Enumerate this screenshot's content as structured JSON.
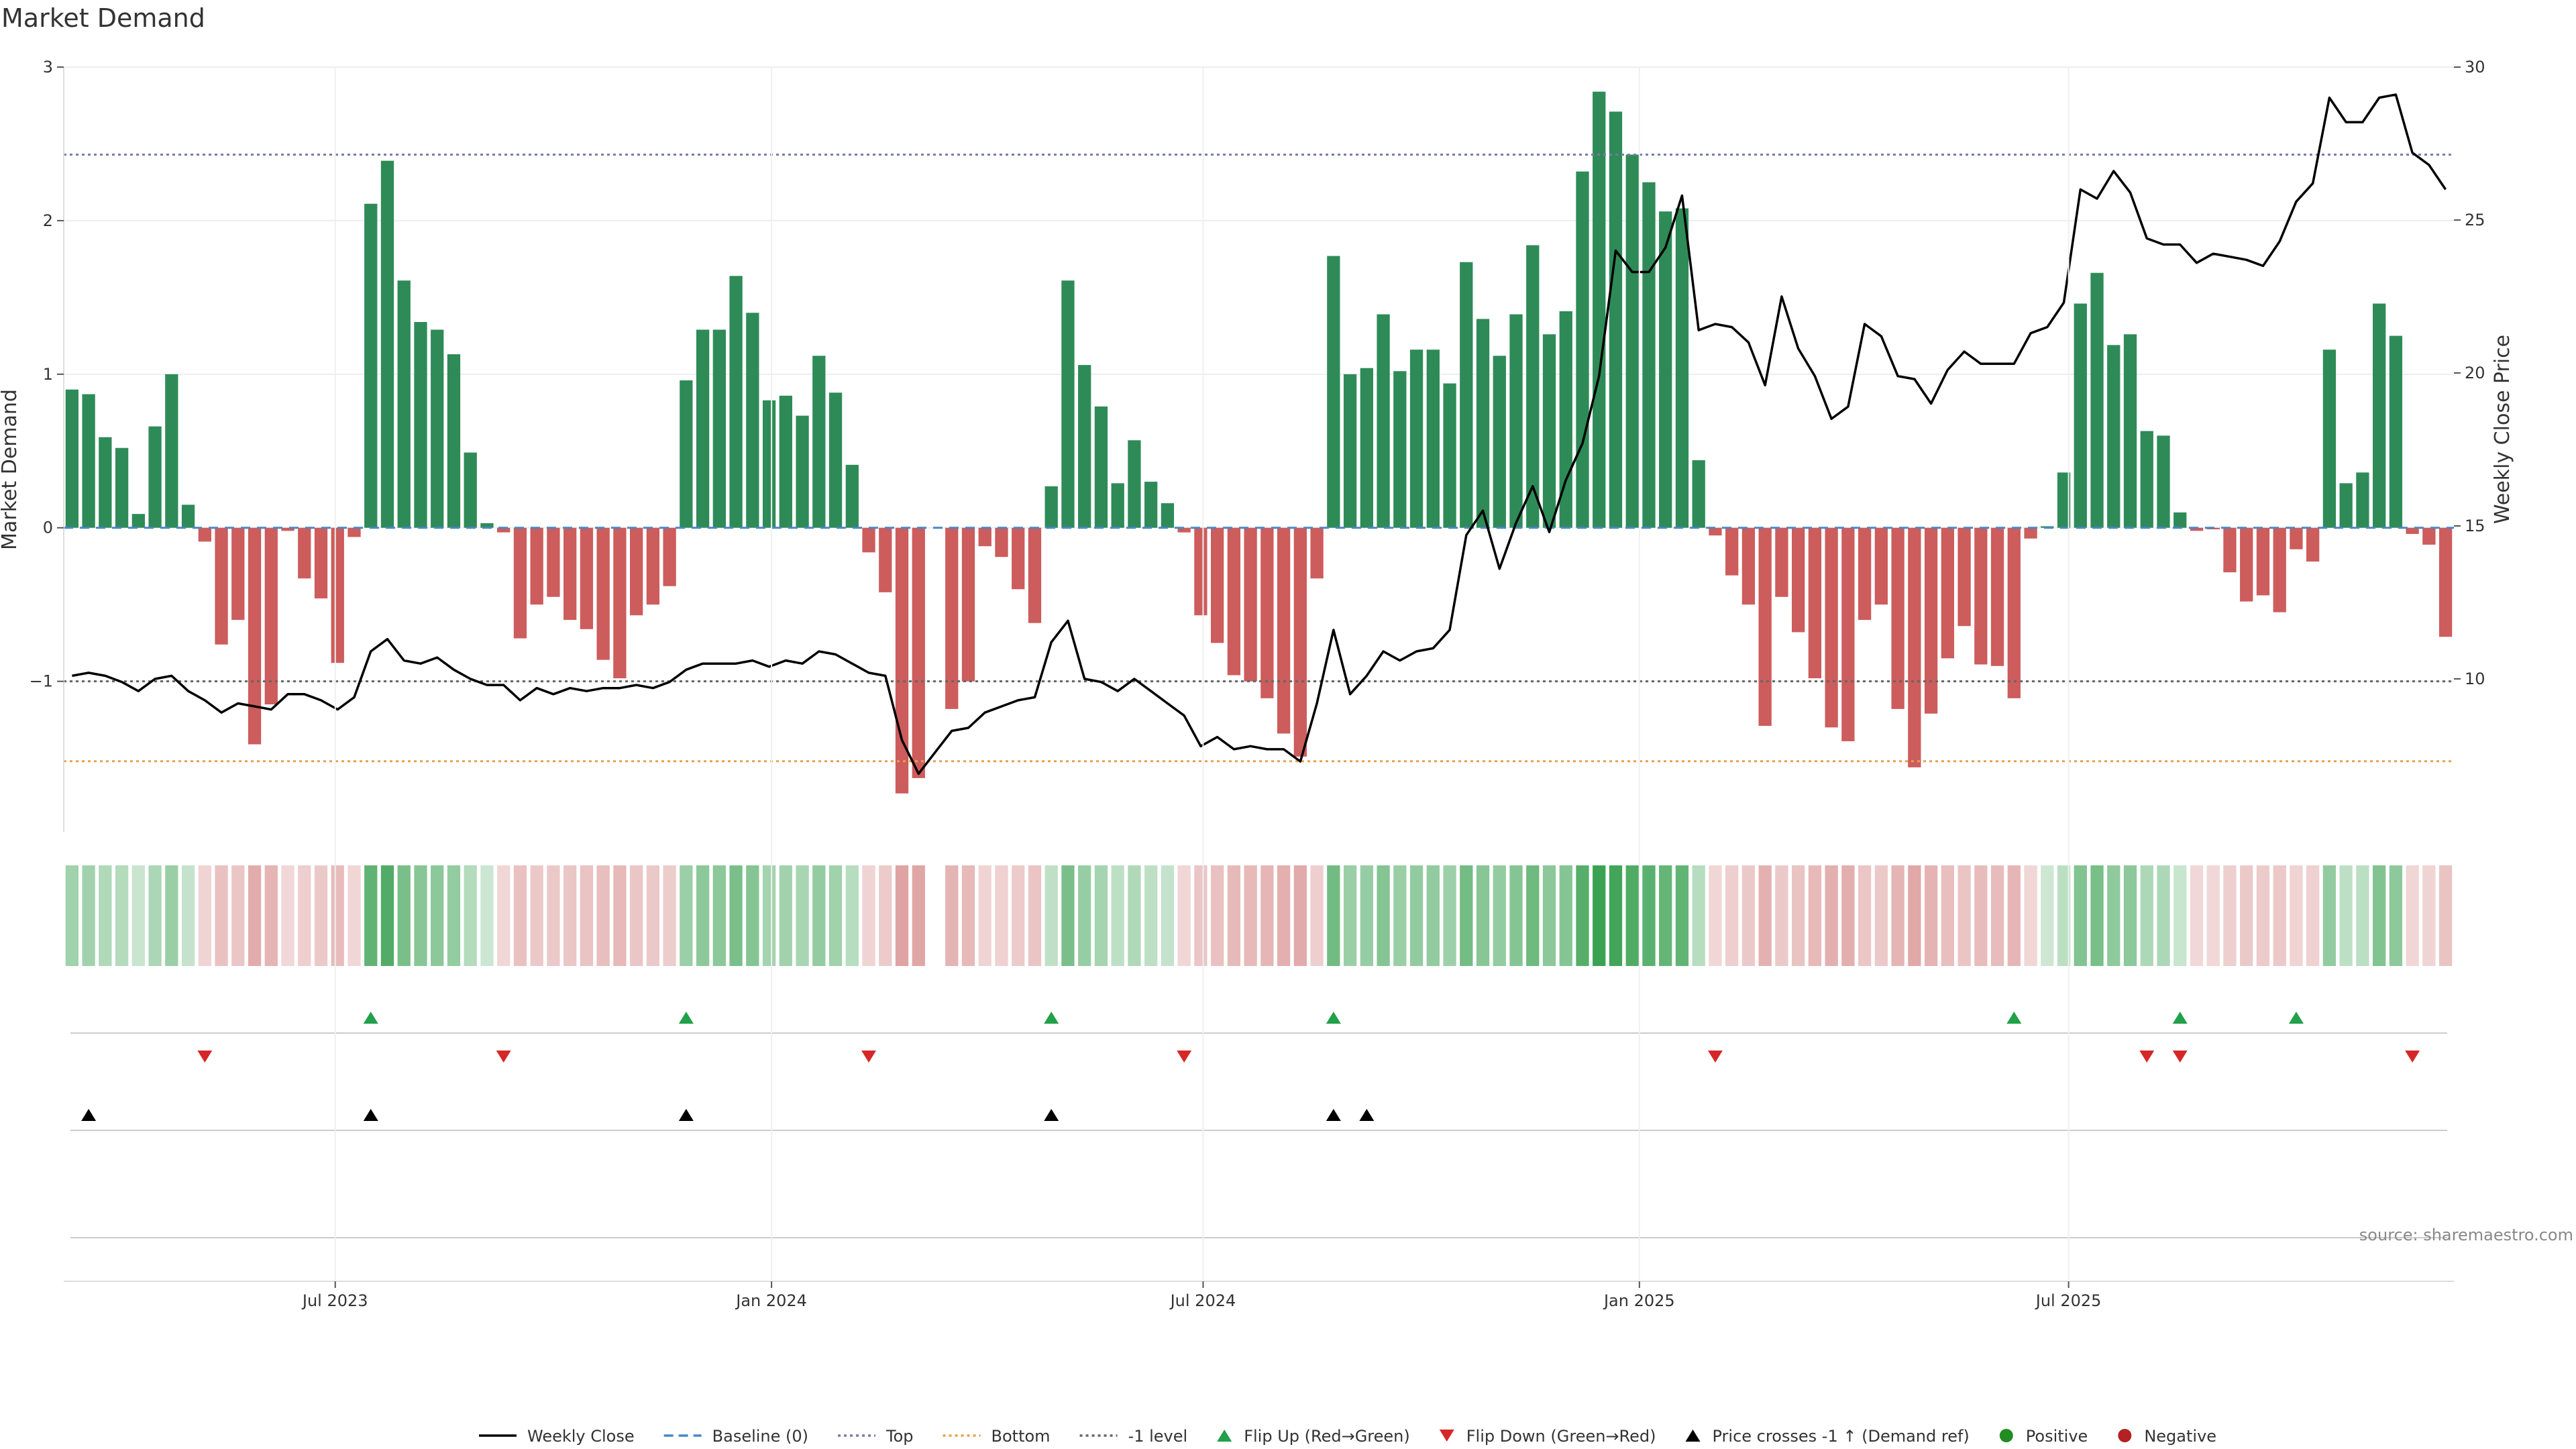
{
  "chart_data": {
    "type": "bar",
    "title": "Market Demand",
    "ylabel": "Market Demand",
    "ylabel_right": "Weekly Close Price",
    "ylim": [
      -1.98,
      3.0
    ],
    "yticks": [
      3,
      2,
      1,
      0,
      -1
    ],
    "ytick_labels": [
      "3",
      "2",
      "1",
      "0",
      "−1"
    ],
    "ylim_right": [
      5.0,
      30.0
    ],
    "yticks_right": [
      30,
      25,
      20,
      15,
      10
    ],
    "ytick_labels_right": [
      "30",
      "25",
      "20",
      "15",
      "10"
    ],
    "x_start": "2023-03-12",
    "week_count": 144,
    "x_ticks": [
      {
        "label": "Jul 2023",
        "date": "2023-07-01"
      },
      {
        "label": "Jan 2024",
        "date": "2024-01-01"
      },
      {
        "label": "Jul 2024",
        "date": "2024-07-01"
      },
      {
        "label": "Jan 2025",
        "date": "2025-01-01"
      },
      {
        "label": "Jul 2025",
        "date": "2025-07-01"
      }
    ],
    "levels": {
      "top": 2.43,
      "bottom": -1.52,
      "minus_one": -1.0,
      "baseline": 0.0
    },
    "series": [
      {
        "name": "Market Demand",
        "kind": "bar",
        "values": [
          0.9,
          0.87,
          0.59,
          0.52,
          0.09,
          0.66,
          1.0,
          0.15,
          -0.09,
          -0.76,
          -0.6,
          -1.41,
          -1.15,
          -0.02,
          -0.33,
          -0.46,
          -0.88,
          -0.06,
          2.11,
          2.39,
          1.61,
          1.34,
          1.29,
          1.13,
          0.49,
          0.03,
          -0.03,
          -0.72,
          -0.5,
          -0.45,
          -0.6,
          -0.66,
          -0.86,
          -0.98,
          -0.57,
          -0.5,
          -0.38,
          0.96,
          1.29,
          1.29,
          1.64,
          1.4,
          0.83,
          0.86,
          0.73,
          1.12,
          0.88,
          0.41,
          -0.16,
          -0.42,
          -1.73,
          -1.63,
          0.0,
          -1.18,
          -1.0,
          -0.12,
          -0.19,
          -0.4,
          -0.62,
          0.27,
          1.61,
          1.06,
          0.79,
          0.29,
          0.57,
          0.3,
          0.16,
          -0.03,
          -0.57,
          -0.75,
          -0.96,
          -1.0,
          -1.11,
          -1.34,
          -1.49,
          -0.33,
          1.77,
          1.0,
          1.04,
          1.39,
          1.02,
          1.16,
          1.16,
          0.94,
          1.73,
          1.36,
          1.12,
          1.39,
          1.84,
          1.26,
          1.41,
          2.32,
          2.84,
          2.71,
          2.43,
          2.25,
          2.06,
          2.08,
          0.44,
          -0.05,
          -0.31,
          -0.5,
          -1.29,
          -0.45,
          -0.68,
          -0.98,
          -1.3,
          -1.39,
          -0.6,
          -0.5,
          -1.18,
          -1.56,
          -1.21,
          -0.85,
          -0.64,
          -0.89,
          -0.9,
          -1.11,
          -0.07,
          0.01,
          0.36,
          1.46,
          1.66,
          1.19,
          1.26,
          0.63,
          0.6,
          0.1,
          -0.02,
          -0.01,
          -0.29,
          -0.48,
          -0.44,
          -0.55,
          -0.14,
          -0.22,
          1.16,
          0.29,
          0.36,
          1.46,
          1.25,
          -0.04,
          -0.11,
          -0.71
        ]
      },
      {
        "name": "Weekly Close",
        "kind": "line",
        "axis": "right",
        "values": [
          10.1,
          10.2,
          10.1,
          9.9,
          9.6,
          10.0,
          10.1,
          9.6,
          9.3,
          8.9,
          9.2,
          9.1,
          9.0,
          9.5,
          9.5,
          9.3,
          9.0,
          9.4,
          10.9,
          11.3,
          10.6,
          10.5,
          10.7,
          10.3,
          10.0,
          9.8,
          9.8,
          9.3,
          9.7,
          9.5,
          9.7,
          9.6,
          9.7,
          9.7,
          9.8,
          9.7,
          9.9,
          10.3,
          10.5,
          10.5,
          10.5,
          10.6,
          10.4,
          10.6,
          10.5,
          10.9,
          10.8,
          10.5,
          10.2,
          10.1,
          8.0,
          6.9,
          7.6,
          8.3,
          8.4,
          8.9,
          9.1,
          9.3,
          9.4,
          11.2,
          11.9,
          10.0,
          9.9,
          9.6,
          10.0,
          9.6,
          9.2,
          8.8,
          7.8,
          8.1,
          7.7,
          7.8,
          7.7,
          7.7,
          7.3,
          9.2,
          11.6,
          9.5,
          10.1,
          10.9,
          10.6,
          10.9,
          11.0,
          11.6,
          14.7,
          15.5,
          13.6,
          15.1,
          16.3,
          14.8,
          16.5,
          17.7,
          19.9,
          24.0,
          23.3,
          23.3,
          24.1,
          25.8,
          21.4,
          21.6,
          21.5,
          21.0,
          19.6,
          22.5,
          20.8,
          19.9,
          18.5,
          18.9,
          21.6,
          21.2,
          19.9,
          19.8,
          19.0,
          20.1,
          20.7,
          20.3,
          20.3,
          20.3,
          21.3,
          21.5,
          22.3,
          26.0,
          25.7,
          26.6,
          25.9,
          24.4,
          24.2,
          24.2,
          23.6,
          23.9,
          23.8,
          23.7,
          23.5,
          24.3,
          25.6,
          26.2,
          29.0,
          28.2,
          28.2,
          29.0,
          29.1,
          27.2,
          26.8,
          26.0
        ]
      }
    ],
    "flip_up_weeks": [
      18,
      37,
      59,
      76,
      117,
      127,
      134
    ],
    "flip_down_weeks": [
      8,
      26,
      48,
      67,
      99,
      125,
      127,
      141
    ],
    "price_cross_weeks": [
      1,
      18,
      37,
      59,
      76,
      78
    ],
    "heat_strip_values": [
      0.9,
      0.87,
      0.59,
      0.52,
      0.09,
      0.66,
      1.0,
      0.15,
      -0.09,
      -0.76,
      -0.6,
      -1.41,
      -1.15,
      -0.02,
      -0.33,
      -0.46,
      -0.88,
      -0.06,
      2.11,
      2.39,
      1.61,
      1.34,
      1.29,
      1.13,
      0.49,
      0.03,
      -0.03,
      -0.72,
      -0.5,
      -0.45,
      -0.6,
      -0.66,
      -0.86,
      -0.98,
      -0.57,
      -0.5,
      -0.38,
      0.96,
      1.29,
      1.29,
      1.64,
      1.4,
      0.83,
      0.86,
      0.73,
      1.12,
      0.88,
      0.41,
      -0.16,
      -0.42,
      -1.73,
      -1.63,
      0.0,
      -1.18,
      -1.0,
      -0.12,
      -0.19,
      -0.4,
      -0.62,
      0.27,
      1.61,
      1.06,
      0.79,
      0.29,
      0.57,
      0.3,
      0.16,
      -0.03,
      -0.57,
      -0.75,
      -0.96,
      -1.0,
      -1.11,
      -1.34,
      -1.49,
      -0.33,
      1.77,
      1.0,
      1.04,
      1.39,
      1.02,
      1.16,
      1.16,
      0.94,
      1.73,
      1.36,
      1.12,
      1.39,
      1.84,
      1.26,
      1.41,
      2.32,
      2.84,
      2.71,
      2.43,
      2.25,
      2.06,
      2.08,
      0.44,
      -0.05,
      -0.31,
      -0.5,
      -1.29,
      -0.45,
      -0.68,
      -0.98,
      -1.3,
      -1.39,
      -0.6,
      -0.5,
      -1.18,
      -1.56,
      -1.21,
      -0.85,
      -0.64,
      -0.89,
      -0.9,
      -1.11,
      -0.07,
      0.01,
      0.36,
      1.46,
      1.66,
      1.19,
      1.26,
      0.63,
      0.6,
      0.1,
      -0.02,
      -0.01,
      -0.29,
      -0.48,
      -0.44,
      -0.55,
      -0.14,
      -0.22,
      1.16,
      0.29,
      0.36,
      1.46,
      1.25,
      -0.04,
      -0.11,
      -0.71
    ],
    "legend": [
      {
        "label": "Weekly Close",
        "symbol": "line-solid",
        "color": "#000000"
      },
      {
        "label": "Baseline (0)",
        "symbol": "line-dashed",
        "color": "#4a86c8"
      },
      {
        "label": "Top",
        "symbol": "line-dotted",
        "color": "#7a7aa8"
      },
      {
        "label": "Bottom",
        "symbol": "line-dotted",
        "color": "#e8a050"
      },
      {
        "label": "-1 level",
        "symbol": "line-dotted",
        "color": "#666666"
      },
      {
        "label": "Flip Up (Red→Green)",
        "symbol": "triangle-up",
        "color": "#22a04a"
      },
      {
        "label": "Flip Down (Green→Red)",
        "symbol": "triangle-down",
        "color": "#d62728"
      },
      {
        "label": "Price crosses -1 ↑ (Demand ref)",
        "symbol": "triangle-up",
        "color": "#000000"
      },
      {
        "label": "Positive",
        "symbol": "dot",
        "color": "#228b22"
      },
      {
        "label": "Negative",
        "symbol": "dot",
        "color": "#b22222"
      }
    ],
    "source": "source: sharemaestro.com",
    "colors": {
      "positive_bar": "#2e8b57",
      "negative_bar": "#cd5c5c",
      "close_line": "#000000",
      "flip_up": "#22a04a",
      "flip_down": "#d62728",
      "cross": "#000000"
    }
  }
}
